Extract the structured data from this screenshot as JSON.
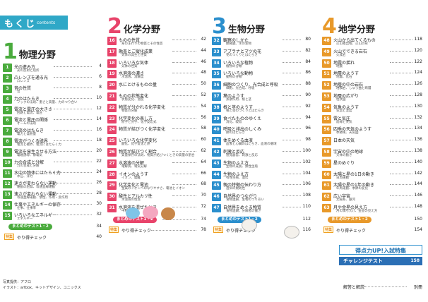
{
  "header": {
    "title": "もくじ",
    "sub": "contents"
  },
  "colors": {
    "physics": "#4aab3d",
    "chemistry": "#e8436a",
    "biology": "#2b8fcd",
    "earth": "#e8992a",
    "header": "#2fa8c7"
  },
  "physics": {
    "num": "1",
    "title": "物理分野",
    "items": [
      {
        "n": "1",
        "t": "光の進み方",
        "s": "光の反射と屈折",
        "p": "4"
      },
      {
        "n": "2",
        "t": "凸レンズを通る光",
        "s": "凸レンズ",
        "p": "6"
      },
      {
        "n": "3",
        "t": "音の性質",
        "s": "音",
        "p": "8"
      },
      {
        "n": "4",
        "t": "力のはたらき",
        "s": "フックの法則、重さと質量、力のつり合い",
        "p": "10"
      },
      {
        "n": "5",
        "t": "電流と電圧の大きさ",
        "s": "回路と電流、電圧",
        "p": "12"
      },
      {
        "n": "6",
        "t": "電流と電圧の関係",
        "s": "オームの法則",
        "p": "14"
      },
      {
        "n": "7",
        "t": "電流のはたらき",
        "s": "電力と発熱量",
        "p": "16"
      },
      {
        "n": "8",
        "t": "電流がつくる磁界",
        "s": "電流と磁界、電流にはたらく力",
        "p": "18"
      },
      {
        "n": "9",
        "t": "電流を発生させる方法",
        "s": "電磁誘導、静電気",
        "p": "20"
      },
      {
        "n": "10",
        "t": "力の合成と分解",
        "s": "力の合成と分解",
        "p": "22"
      },
      {
        "n": "11",
        "t": "水中の物体にはたらく力",
        "s": "水圧、浮力",
        "p": "24"
      },
      {
        "n": "12",
        "t": "速さが変わらない運動",
        "s": "運動の記録、等速直線運動",
        "p": "26"
      },
      {
        "n": "13",
        "t": "速さが変わらない運動",
        "s": "等速直線運動、慣性、作用・反作用",
        "p": "28"
      },
      {
        "n": "14",
        "t": "仕事やエネルギーの保存",
        "s": "仕事、仕事率",
        "p": "30"
      },
      {
        "n": "15",
        "t": "いろいろなエネルギー",
        "s": "エネルギー",
        "p": "32"
      }
    ],
    "matome": {
      "label": "まとめのテスト1・2",
      "p": "34"
    },
    "tokushu": {
      "badge": "特集",
      "label": "やり得チェック",
      "p": "40"
    }
  },
  "chemistry": {
    "num": "2",
    "title": "化学分野",
    "items": [
      {
        "n": "16",
        "t": "ものの性質",
        "s": "身のまわりの物質とその性質",
        "p": "42"
      },
      {
        "n": "17",
        "t": "融査とご縦化成業",
        "s": "気体の発生と性質",
        "p": "44"
      },
      {
        "n": "18",
        "t": "いろいろな気体",
        "s": "気体の性質",
        "p": "46"
      },
      {
        "n": "19",
        "t": "水溶液の濃さ",
        "s": "水溶液、溶解度",
        "p": "48"
      },
      {
        "n": "20",
        "t": "水にとけるものの量",
        "s": "",
        "p": "50"
      },
      {
        "n": "21",
        "t": "ものの状態変化",
        "s": "状態変化、温度",
        "p": "52"
      },
      {
        "n": "22",
        "t": "物質が分かれる化学変化",
        "s": "物質の分解",
        "p": "54"
      },
      {
        "n": "23",
        "t": "化学変化の表し方",
        "s": "原子と分子、化学反応式",
        "p": "56"
      },
      {
        "n": "24",
        "t": "物質が結びつく化学変化",
        "s": "",
        "p": "58"
      },
      {
        "n": "25",
        "t": "いろいろな化学変化",
        "s": "酸化、化学変化と熱",
        "p": "60"
      },
      {
        "n": "26",
        "t": "物質が結びつく割合",
        "s": "質量保存の法則、物質が結びつくときの質量の割合",
        "p": "62"
      },
      {
        "n": "27",
        "t": "水溶液の分解",
        "s": "電解質、電気分解",
        "p": "64"
      },
      {
        "n": "28",
        "t": "イオンのようす",
        "s": "イオン、電離",
        "p": "66"
      },
      {
        "n": "29",
        "t": "化学変化と電池",
        "s": "金属のイオンへのなりやすさ、電池とイオン",
        "p": "68"
      },
      {
        "n": "30",
        "t": "酸性とアルカリ性",
        "s": "水溶液の性質",
        "p": "70"
      },
      {
        "n": "31",
        "t": "水溶液を混ぜたとき",
        "s": "中和と塩",
        "p": "72"
      }
    ],
    "matome": {
      "label": "まとめのテスト1・2",
      "p": "74"
    },
    "tokushu": {
      "badge": "特集",
      "label": "やり得チェック",
      "p": "78"
    }
  },
  "biology": {
    "num": "3",
    "title": "生物分野",
    "items": [
      {
        "n": "32",
        "t": "観察のしかた",
        "s": "顕微鏡、水の生物",
        "p": "80"
      },
      {
        "n": "33",
        "t": "アブラナとマツの花",
        "s": "花のつくりとはたらき",
        "p": "82"
      },
      {
        "n": "34",
        "t": "いろいろな植物",
        "s": "植物の分類",
        "p": "84"
      },
      {
        "n": "35",
        "t": "いろいろな動物",
        "s": "動物の分類",
        "p": "86"
      },
      {
        "n": "36",
        "t": "細胞のつくり、光合成と呼吸",
        "s": "細胞、光合成、呼吸",
        "p": "88"
      },
      {
        "n": "37",
        "t": "葉のようす",
        "s": "蒸散作用、根と茎",
        "p": "90"
      },
      {
        "n": "38",
        "t": "根と茎のようす",
        "s": "根と茎のつくりとはたらき",
        "p": "92"
      },
      {
        "n": "39",
        "t": "食べたもののゆくえ",
        "s": "消化、吸収",
        "p": "94"
      },
      {
        "n": "40",
        "t": "呼吸と排出のしくみ",
        "s": "肺のはたらき",
        "p": "96"
      },
      {
        "n": "41",
        "t": "体をめぐる血液",
        "s": "血液と心臓のはたらき、血液の循環",
        "p": "98"
      },
      {
        "n": "42",
        "t": "刺激と反応",
        "s": "感覚器官、刺激と反応",
        "p": "100"
      },
      {
        "n": "43",
        "t": "生物のふえ方",
        "s": "生物の成長、無性生殖",
        "p": "102"
      },
      {
        "n": "44",
        "t": "生物のふえ方",
        "s": "有性生殖、遺伝",
        "p": "104"
      },
      {
        "n": "45",
        "t": "親の特徴の伝わり方",
        "s": "遺伝の規則性",
        "p": "106"
      },
      {
        "n": "46",
        "t": "自然界のつながり",
        "s": "食物連鎖、生物のつりあい",
        "p": "108"
      },
      {
        "n": "47",
        "t": "自然界をめぐる物質",
        "s": "食物連鎖、分解者の働き",
        "p": "110"
      }
    ],
    "matome": {
      "label": "まとめのテスト1・2",
      "p": "112"
    },
    "tokushu": {
      "badge": "特集",
      "label": "やり得チェック",
      "p": "116"
    }
  },
  "earth": {
    "num": "4",
    "title": "地学分野",
    "items": [
      {
        "n": "48",
        "t": "火山から出てくるもの",
        "s": "火山噴出物、火山の形",
        "p": "118"
      },
      {
        "n": "49",
        "t": "火山でできる岩石",
        "s": "火成岩",
        "p": "120"
      },
      {
        "n": "50",
        "t": "地震の揺れ",
        "s": "地震",
        "p": "122"
      },
      {
        "n": "51",
        "t": "地層のようす",
        "s": "地層、化石",
        "p": "124"
      },
      {
        "n": "52",
        "t": "地層の中の岩石",
        "s": "堆積岩、しゅう曲と断層",
        "p": "126"
      },
      {
        "n": "53",
        "t": "地層の広がり",
        "s": "柱状図",
        "p": "128"
      },
      {
        "n": "54",
        "t": "気象のようす",
        "s": "気温と湿度",
        "p": "130"
      },
      {
        "n": "55",
        "t": "雲と気圧",
        "s": "前線と天気",
        "p": "132"
      },
      {
        "n": "56",
        "t": "四季の天気のようす",
        "s": "季節風、天気図",
        "p": "134"
      },
      {
        "n": "57",
        "t": "日本の天気",
        "s": "",
        "p": "136"
      },
      {
        "n": "58",
        "t": "宇宙の中の地球",
        "s": "天体の動き",
        "p": "138"
      },
      {
        "n": "59",
        "t": "星のめぐり",
        "s": "",
        "p": "140"
      },
      {
        "n": "60",
        "t": "太陽と星の1日の動き",
        "s": "日周運動",
        "p": "142"
      },
      {
        "n": "61",
        "t": "太陽や星の1年の動き",
        "s": "年周運動、季節の変化",
        "p": "144"
      },
      {
        "n": "62",
        "t": "広い宇宙",
        "s": "太陽系、銀河",
        "p": "146"
      },
      {
        "n": "63",
        "t": "月や金星の見え方",
        "s": "月の満ち欠け、金星の見え方",
        "p": "148"
      }
    ],
    "matome": {
      "label": "まとめのテスト1・2",
      "p": "150"
    },
    "tokushu": {
      "badge": "特集",
      "label": "やり得チェック",
      "p": "154"
    }
  },
  "special": {
    "label": "得点力UP!入試特集",
    "challenge": "チャレンジテスト",
    "p": "158"
  },
  "answers": {
    "label": "解答と解説",
    "note": "別冊"
  },
  "credits": {
    "line1": "写真提供：アフロ",
    "line2": "イラスト：artbox、キットデザイン、ユニックス"
  }
}
